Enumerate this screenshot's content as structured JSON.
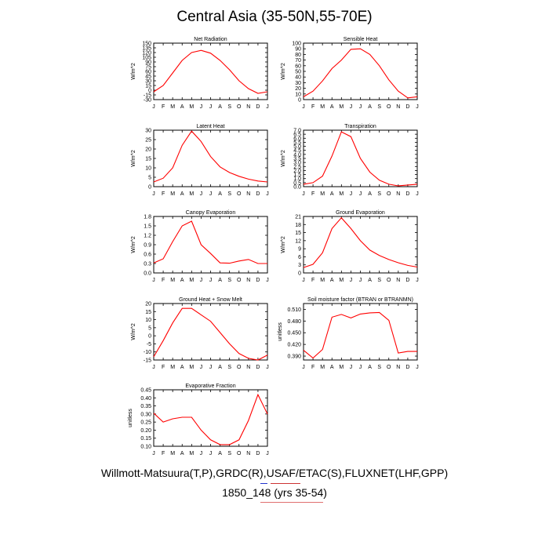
{
  "title": "Central Asia (35-50N,55-70E)",
  "caption_line1": "Willmott-Matsuura(T,P),GRDC(R),USAF/ETAC(S),FLUXNET(LHF,GPP)",
  "caption_line2": "1850_148 (yrs 35-54)",
  "colors": {
    "series": "#ff0000",
    "axis": "#000000"
  },
  "months": [
    "J",
    "F",
    "M",
    "A",
    "M",
    "J",
    "J",
    "A",
    "S",
    "O",
    "N",
    "D",
    "J"
  ],
  "chart_data": [
    {
      "type": "line",
      "title": "Net Radiation",
      "ylabel": "W/m^2",
      "ylim": [
        -30,
        150
      ],
      "yticks": [
        "-30",
        "-15",
        "0",
        "15",
        "30",
        "45",
        "60",
        "75",
        "90",
        "105",
        "120",
        "135",
        "150"
      ],
      "ytick_values": [
        -30,
        -15,
        0,
        15,
        30,
        45,
        60,
        75,
        90,
        105,
        120,
        135,
        150
      ],
      "values": [
        -5,
        15,
        55,
        95,
        120,
        127,
        118,
        95,
        65,
        30,
        5,
        -10,
        -5
      ]
    },
    {
      "type": "line",
      "title": "Sensible Heat",
      "ylabel": "W/m^2",
      "ylim": [
        0,
        100
      ],
      "yticks": [
        "0",
        "10",
        "20",
        "30",
        "40",
        "50",
        "60",
        "70",
        "80",
        "90",
        "100"
      ],
      "ytick_values": [
        0,
        10,
        20,
        30,
        40,
        50,
        60,
        70,
        80,
        90,
        100
      ],
      "values": [
        5,
        15,
        33,
        55,
        70,
        89,
        90,
        80,
        60,
        35,
        15,
        3,
        5
      ]
    },
    {
      "type": "line",
      "title": "Latent Heat",
      "ylabel": "W/m^2",
      "ylim": [
        0,
        30
      ],
      "yticks": [
        "0",
        "5",
        "10",
        "15",
        "20",
        "25",
        "30"
      ],
      "ytick_values": [
        0,
        5,
        10,
        15,
        20,
        25,
        30
      ],
      "values": [
        2.5,
        4.5,
        10,
        22,
        29.5,
        24,
        16,
        10.5,
        7.5,
        5.5,
        4,
        3,
        2.5
      ]
    },
    {
      "type": "line",
      "title": "Transpiration",
      "ylabel": "W/m^2",
      "ylim": [
        0,
        7
      ],
      "yticks": [
        "0.0",
        "0.5",
        "1.0",
        "1.5",
        "2.0",
        "2.5",
        "3.0",
        "3.5",
        "4.0",
        "4.5",
        "5.0",
        "5.5",
        "6.0",
        "6.5",
        "7.0"
      ],
      "ytick_values": [
        0,
        0.5,
        1,
        1.5,
        2,
        2.5,
        3,
        3.5,
        4,
        4.5,
        5,
        5.5,
        6,
        6.5,
        7
      ],
      "values": [
        0.3,
        0.5,
        1.3,
        3.8,
        6.8,
        6.2,
        3.5,
        1.8,
        0.8,
        0.3,
        0.1,
        0.2,
        0.3
      ]
    },
    {
      "type": "line",
      "title": "Canopy Evaporation",
      "ylabel": "W/m^2",
      "ylim": [
        0,
        1.8
      ],
      "yticks": [
        "0.0",
        "0.3",
        "0.6",
        "0.9",
        "1.2",
        "1.5",
        "1.8"
      ],
      "ytick_values": [
        0,
        0.3,
        0.6,
        0.9,
        1.2,
        1.5,
        1.8
      ],
      "values": [
        0.32,
        0.45,
        1.0,
        1.5,
        1.65,
        0.9,
        0.62,
        0.32,
        0.31,
        0.38,
        0.43,
        0.3,
        0.3
      ]
    },
    {
      "type": "line",
      "title": "Ground Evaporation",
      "ylabel": "W/m^2",
      "ylim": [
        0,
        21
      ],
      "yticks": [
        "0",
        "3",
        "6",
        "9",
        "12",
        "15",
        "18",
        "21"
      ],
      "ytick_values": [
        0,
        3,
        6,
        9,
        12,
        15,
        18,
        21
      ],
      "values": [
        2,
        3.2,
        7.5,
        16.5,
        20.5,
        16.5,
        12,
        8.5,
        6.5,
        5,
        3.8,
        2.8,
        2.2
      ]
    },
    {
      "type": "line",
      "title": "Ground Heat + Snow Melt",
      "ylabel": "W/m^2",
      "ylim": [
        -15,
        20
      ],
      "yticks": [
        "-15",
        "-10",
        "-5",
        "0",
        "5",
        "10",
        "15",
        "20"
      ],
      "ytick_values": [
        -15,
        -10,
        -5,
        0,
        5,
        10,
        15,
        20
      ],
      "values": [
        -13,
        -3,
        8,
        17,
        17,
        13,
        9,
        2,
        -5,
        -11,
        -14,
        -15,
        -12
      ]
    },
    {
      "type": "line",
      "title": "Soil moisture factor (BTRAN or BTRANMN)",
      "ylabel": "unitless",
      "ylim": [
        0.38,
        0.525
      ],
      "yticks": [
        "0.390",
        "0.420",
        "0.450",
        "0.480",
        "0.510"
      ],
      "ytick_values": [
        0.39,
        0.42,
        0.45,
        0.48,
        0.51
      ],
      "values": [
        0.405,
        0.385,
        0.407,
        0.49,
        0.497,
        0.488,
        0.498,
        0.501,
        0.502,
        0.482,
        0.398,
        0.402,
        0.402
      ]
    },
    {
      "type": "line",
      "title": "Evaporative Fraction",
      "ylabel": "unitless",
      "ylim": [
        0.1,
        0.45
      ],
      "yticks": [
        "0.10",
        "0.15",
        "0.20",
        "0.25",
        "0.30",
        "0.35",
        "0.40",
        "0.45"
      ],
      "ytick_values": [
        0.1,
        0.15,
        0.2,
        0.25,
        0.3,
        0.35,
        0.4,
        0.45
      ],
      "values": [
        0.305,
        0.25,
        0.27,
        0.28,
        0.28,
        0.2,
        0.14,
        0.11,
        0.11,
        0.14,
        0.26,
        0.42,
        0.3
      ]
    }
  ]
}
